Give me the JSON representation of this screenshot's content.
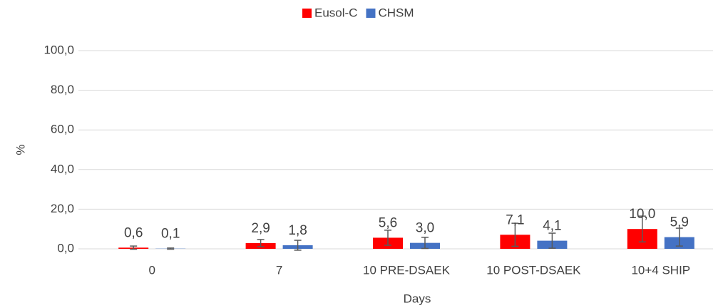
{
  "chart_data": {
    "type": "bar",
    "x_label": "Days",
    "y_label": "%",
    "categories": [
      "0",
      "7",
      "10 PRE-DSAEK",
      "10 POST-DSAEK",
      "10+4 SHIP"
    ],
    "series": [
      {
        "name": "Eusol-C",
        "color": "#ff0000",
        "values": [
          0.6,
          2.9,
          5.6,
          7.1,
          10.0
        ],
        "value_labels": [
          "0,6",
          "2,9",
          "5,6",
          "7,1",
          "10,0"
        ],
        "errors": [
          0.8,
          1.8,
          3.8,
          5.8,
          6.5
        ]
      },
      {
        "name": "CHSM",
        "color": "#4472c4",
        "values": [
          0.1,
          1.8,
          3.0,
          4.1,
          5.9
        ],
        "value_labels": [
          "0,1",
          "1,8",
          "3,0",
          "4,1",
          "5,9"
        ],
        "errors": [
          0.3,
          2.5,
          2.8,
          3.8,
          4.5
        ]
      }
    ],
    "ylim": [
      0,
      100
    ],
    "yticks": [
      {
        "value": 0,
        "label": "0,0"
      },
      {
        "value": 20,
        "label": "20,0"
      },
      {
        "value": 40,
        "label": "40,0"
      },
      {
        "value": 60,
        "label": "60,0"
      },
      {
        "value": 80,
        "label": "80,0"
      },
      {
        "value": 100,
        "label": "100,0"
      }
    ],
    "grid": true,
    "legend": "top"
  }
}
